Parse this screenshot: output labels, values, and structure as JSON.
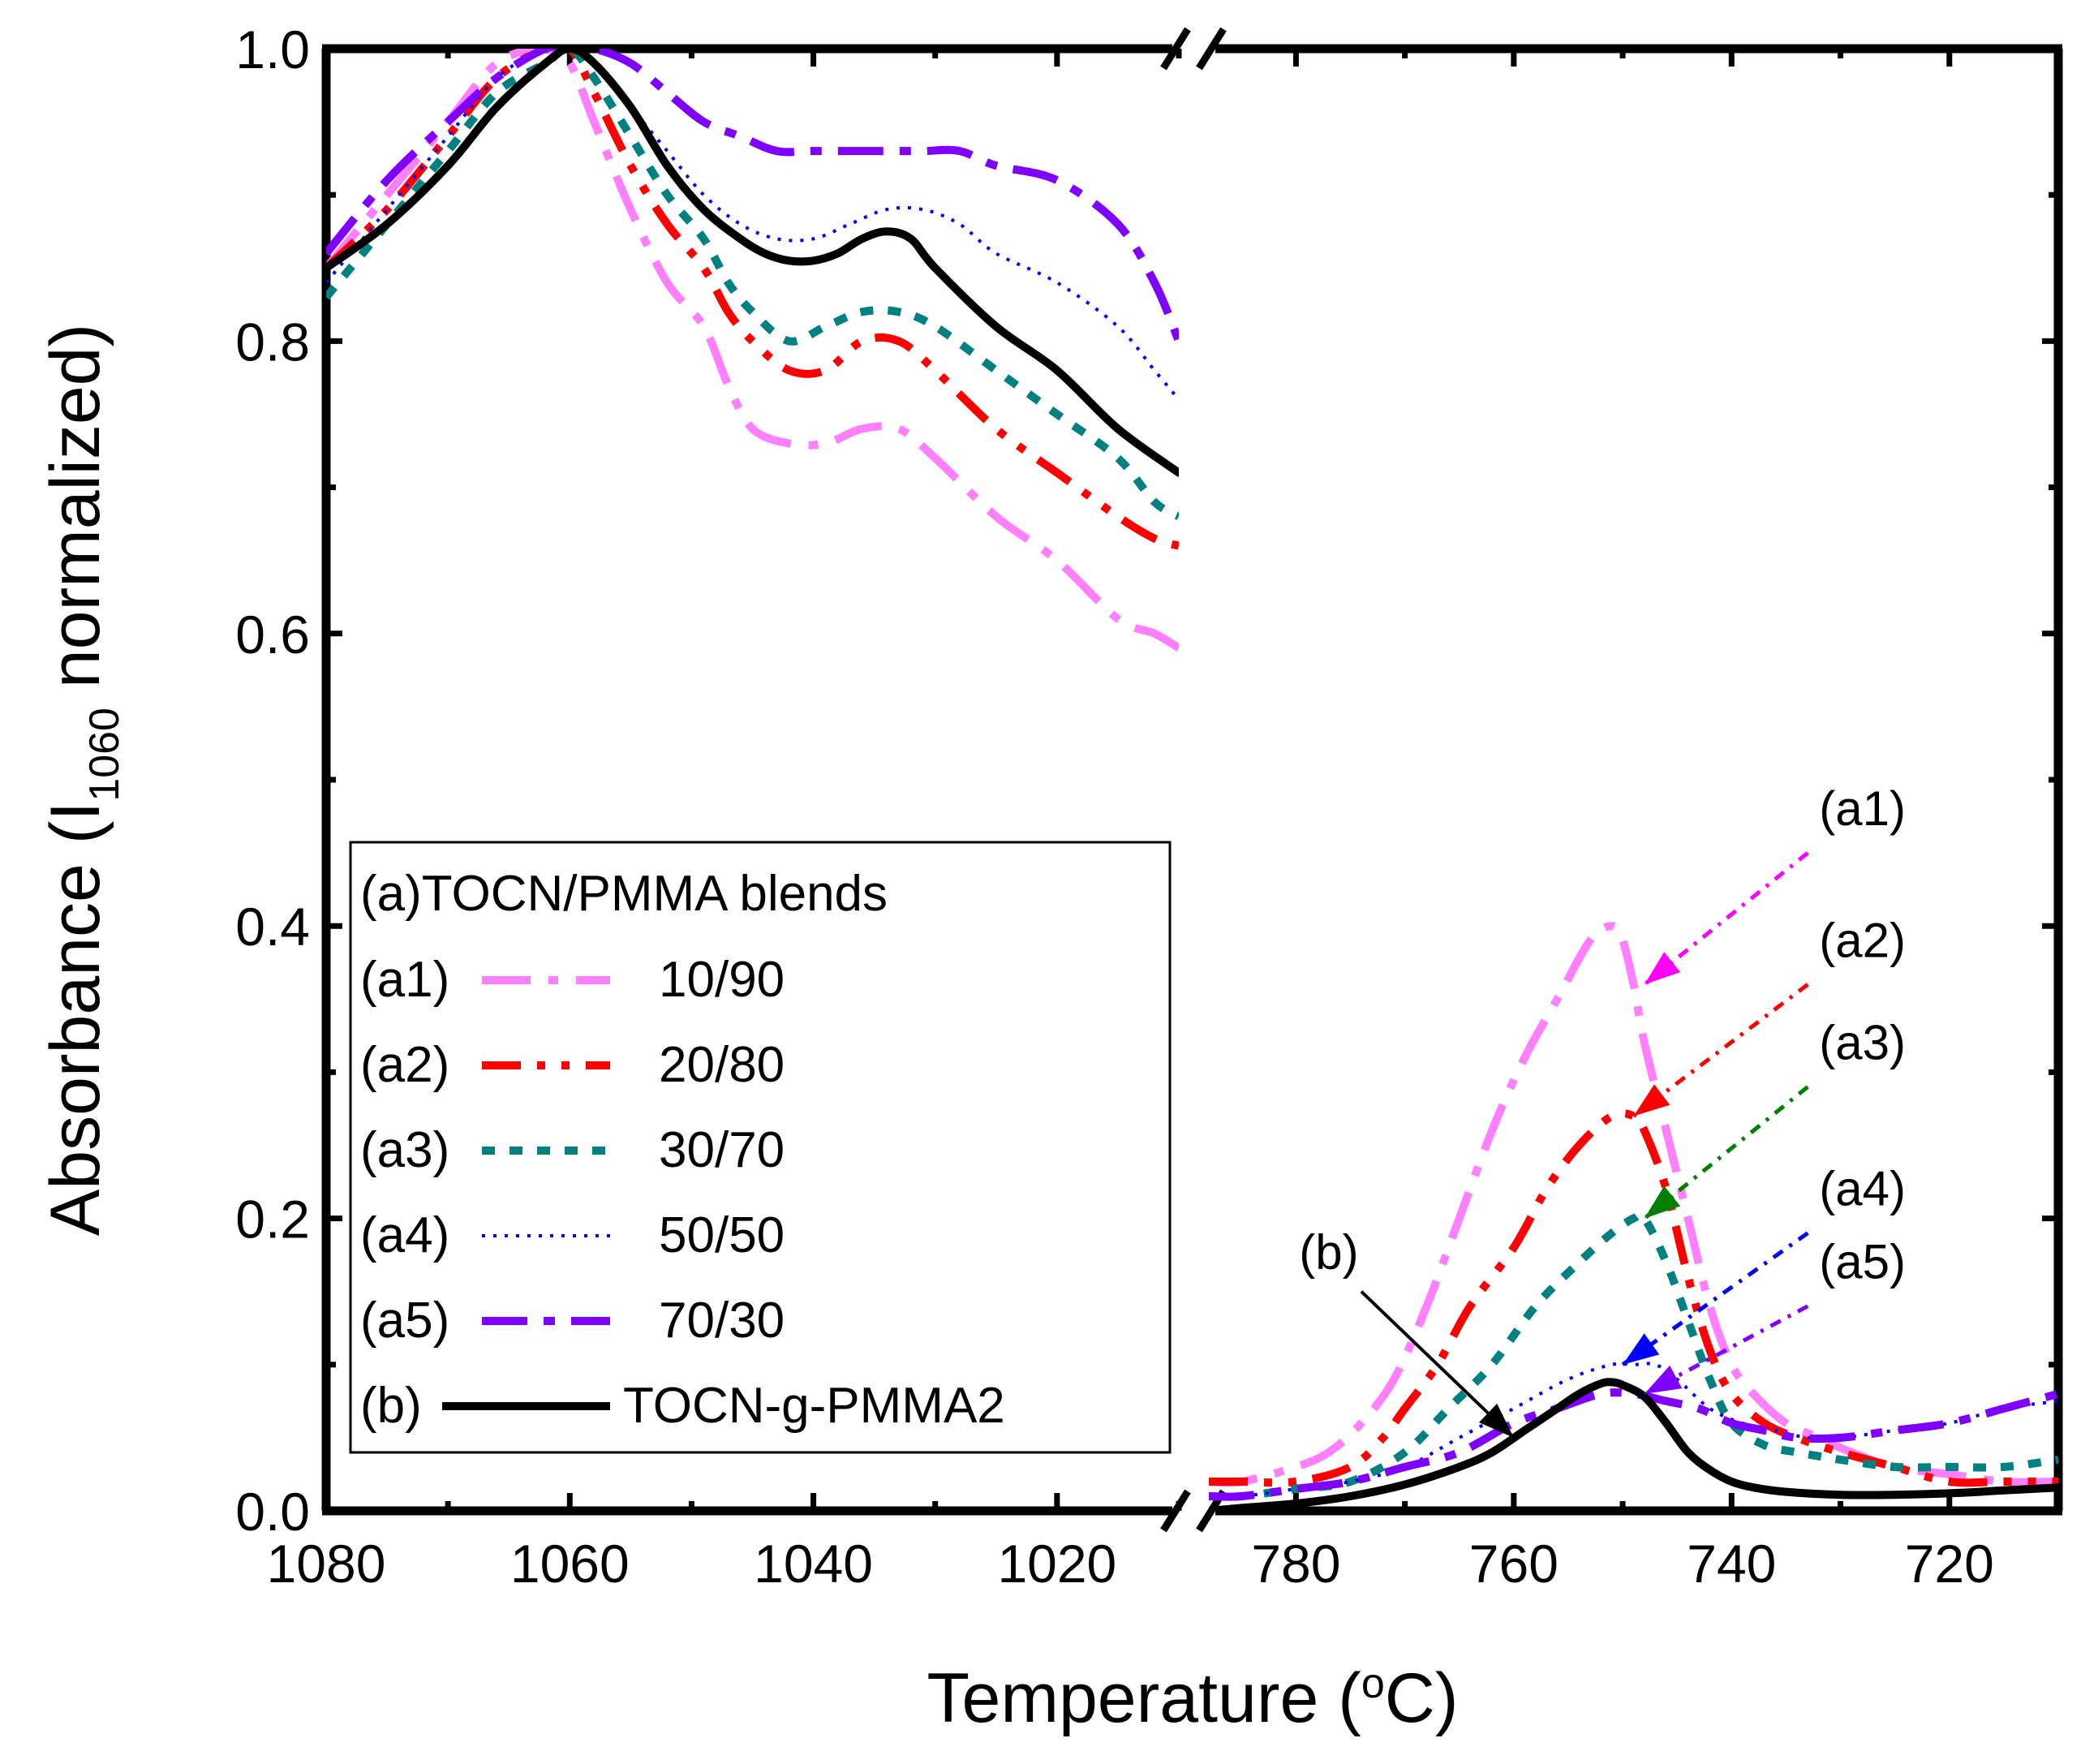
{
  "chart_data": {
    "type": "line",
    "title": "",
    "xlabel": "Temperature (°C)",
    "xlabel_prefix": "Temperature (",
    "xlabel_sup": "o",
    "xlabel_suffix": "C)",
    "ylabel_prefix": "Absorbance (I",
    "ylabel_sub": "1060",
    "ylabel_suffix": " normalized)",
    "ylim": [
      0.0,
      1.0
    ],
    "yticks": [
      "0.0",
      "0.2",
      "0.4",
      "0.6",
      "0.8",
      "1.0"
    ],
    "segments": [
      {
        "id": "left",
        "xlim": [
          1080,
          1010
        ],
        "xticks": [
          "1080",
          "1060",
          "1040",
          "1020"
        ]
      },
      {
        "id": "right",
        "xlim": [
          788,
          710
        ],
        "xticks": [
          "780",
          "760",
          "740",
          "720"
        ]
      }
    ],
    "legend": {
      "title": "(a)TOCN/PMMA blends",
      "placement": "center-left",
      "entries": [
        {
          "tag": "(a1)",
          "label": "10/90"
        },
        {
          "tag": "(a2)",
          "label": "20/80"
        },
        {
          "tag": "(a3)",
          "label": "30/70"
        },
        {
          "tag": "(a4)",
          "label": "50/50"
        },
        {
          "tag": "(a5)",
          "label": "70/30"
        },
        {
          "tag": "(b)",
          "label": "TOCN-g-PMMA2"
        }
      ]
    },
    "series": [
      {
        "name": "(a1) 10/90",
        "color": "#ff80ff",
        "dash": "dashdot",
        "left": {
          "x": [
            1080,
            1075,
            1070,
            1066,
            1062,
            1060,
            1058,
            1055,
            1052,
            1049,
            1047,
            1045,
            1042,
            1039,
            1036,
            1033,
            1030,
            1025,
            1020,
            1015,
            1012,
            1010
          ],
          "y": [
            0.85,
            0.9,
            0.95,
            0.99,
            1.0,
            0.99,
            0.95,
            0.89,
            0.84,
            0.81,
            0.77,
            0.74,
            0.73,
            0.73,
            0.74,
            0.74,
            0.72,
            0.68,
            0.65,
            0.61,
            0.6,
            0.59
          ]
        },
        "right": {
          "x": [
            788,
            785,
            780,
            777,
            774,
            771,
            768,
            765,
            762,
            759,
            756,
            753,
            751,
            750,
            749,
            748,
            746,
            744,
            742,
            740,
            738,
            735,
            732,
            729,
            725,
            720,
            715,
            710
          ],
          "y": [
            0.02,
            0.02,
            0.03,
            0.04,
            0.06,
            0.09,
            0.14,
            0.2,
            0.26,
            0.31,
            0.35,
            0.39,
            0.4,
            0.39,
            0.36,
            0.32,
            0.26,
            0.2,
            0.14,
            0.1,
            0.08,
            0.06,
            0.05,
            0.04,
            0.03,
            0.025,
            0.02,
            0.02
          ]
        }
      },
      {
        "name": "(a2) 20/80",
        "color": "#ff0000",
        "dash": "dashdotdot",
        "left": {
          "x": [
            1080,
            1075,
            1070,
            1066,
            1062,
            1060,
            1058,
            1055,
            1052,
            1049,
            1047,
            1045,
            1042,
            1039,
            1036,
            1033,
            1030,
            1025,
            1020,
            1015,
            1012,
            1010
          ],
          "y": [
            0.85,
            0.89,
            0.94,
            0.98,
            1.0,
            1.0,
            0.97,
            0.92,
            0.88,
            0.85,
            0.82,
            0.8,
            0.78,
            0.78,
            0.8,
            0.8,
            0.78,
            0.74,
            0.71,
            0.68,
            0.665,
            0.66
          ]
        },
        "right": {
          "x": [
            788,
            785,
            780,
            775,
            772,
            770,
            767,
            764,
            760,
            757,
            754,
            751,
            749,
            748,
            746,
            744,
            742,
            740,
            737,
            734,
            730,
            725,
            720,
            715,
            710
          ],
          "y": [
            0.02,
            0.02,
            0.02,
            0.03,
            0.05,
            0.07,
            0.1,
            0.14,
            0.18,
            0.22,
            0.25,
            0.27,
            0.27,
            0.26,
            0.22,
            0.16,
            0.11,
            0.08,
            0.06,
            0.05,
            0.04,
            0.03,
            0.02,
            0.02,
            0.02
          ]
        }
      },
      {
        "name": "(a3) 30/70",
        "color": "#008080",
        "dash": "dot",
        "left": {
          "x": [
            1080,
            1075,
            1070,
            1066,
            1062,
            1060,
            1058,
            1055,
            1052,
            1049,
            1047,
            1045,
            1042,
            1039,
            1036,
            1033,
            1030,
            1025,
            1020,
            1015,
            1012,
            1010
          ],
          "y": [
            0.83,
            0.88,
            0.93,
            0.97,
            0.99,
            1.0,
            0.98,
            0.94,
            0.9,
            0.87,
            0.84,
            0.82,
            0.8,
            0.81,
            0.82,
            0.82,
            0.81,
            0.78,
            0.75,
            0.72,
            0.69,
            0.68
          ]
        },
        "right": {
          "x": [
            788,
            785,
            780,
            775,
            770,
            766,
            762,
            758,
            754,
            751,
            749,
            748,
            746,
            744,
            742,
            740,
            737,
            734,
            730,
            725,
            720,
            715,
            710
          ],
          "y": [
            0.01,
            0.01,
            0.015,
            0.02,
            0.04,
            0.07,
            0.1,
            0.14,
            0.17,
            0.19,
            0.2,
            0.2,
            0.17,
            0.13,
            0.09,
            0.06,
            0.045,
            0.04,
            0.035,
            0.03,
            0.03,
            0.03,
            0.035
          ]
        }
      },
      {
        "name": "(a4) 50/50",
        "color": "#0000ff",
        "dash": "dotfine",
        "left": {
          "x": [
            1080,
            1075,
            1070,
            1066,
            1062,
            1060,
            1058,
            1055,
            1052,
            1049,
            1046,
            1043,
            1040,
            1037,
            1034,
            1031,
            1028,
            1025,
            1020,
            1015,
            1012,
            1010
          ],
          "y": [
            0.84,
            0.89,
            0.94,
            0.98,
            1.0,
            1.0,
            0.99,
            0.96,
            0.93,
            0.9,
            0.88,
            0.87,
            0.87,
            0.88,
            0.89,
            0.89,
            0.88,
            0.86,
            0.84,
            0.81,
            0.78,
            0.76
          ]
        },
        "right": {
          "x": [
            788,
            785,
            780,
            775,
            770,
            765,
            760,
            755,
            751,
            749,
            747,
            745,
            742,
            739,
            736,
            733,
            730,
            725,
            720,
            715,
            710
          ],
          "y": [
            0.01,
            0.01,
            0.015,
            0.02,
            0.03,
            0.05,
            0.07,
            0.09,
            0.1,
            0.1,
            0.1,
            0.09,
            0.07,
            0.06,
            0.055,
            0.05,
            0.05,
            0.055,
            0.06,
            0.07,
            0.075
          ]
        }
      },
      {
        "name": "(a5) 70/30",
        "color": "#8000ff",
        "dash": "dashdot-long",
        "left": {
          "x": [
            1080,
            1075,
            1070,
            1066,
            1062,
            1060,
            1058,
            1055,
            1052,
            1049,
            1046,
            1043,
            1040,
            1037,
            1034,
            1031,
            1028,
            1025,
            1020,
            1015,
            1012,
            1010
          ],
          "y": [
            0.86,
            0.91,
            0.95,
            0.98,
            1.0,
            1.0,
            1.0,
            0.99,
            0.97,
            0.95,
            0.94,
            0.93,
            0.93,
            0.93,
            0.93,
            0.93,
            0.93,
            0.92,
            0.91,
            0.88,
            0.84,
            0.8
          ]
        },
        "right": {
          "x": [
            788,
            785,
            780,
            775,
            770,
            765,
            760,
            756,
            752,
            749,
            746,
            743,
            740,
            737,
            734,
            730,
            725,
            720,
            715,
            710
          ],
          "y": [
            0.01,
            0.01,
            0.015,
            0.02,
            0.03,
            0.04,
            0.06,
            0.07,
            0.08,
            0.08,
            0.075,
            0.07,
            0.06,
            0.055,
            0.05,
            0.05,
            0.055,
            0.06,
            0.07,
            0.08
          ]
        }
      },
      {
        "name": "(b) TOCN-g-PMMA2",
        "color": "#000000",
        "dash": "solid",
        "left": {
          "x": [
            1080,
            1075,
            1070,
            1066,
            1062,
            1060,
            1058,
            1055,
            1052,
            1049,
            1046,
            1044,
            1042,
            1040,
            1038,
            1036,
            1034,
            1032,
            1030,
            1025,
            1020,
            1015,
            1010
          ],
          "y": [
            0.85,
            0.88,
            0.92,
            0.96,
            0.99,
            1.0,
            0.99,
            0.96,
            0.92,
            0.89,
            0.87,
            0.86,
            0.855,
            0.855,
            0.86,
            0.87,
            0.875,
            0.87,
            0.85,
            0.81,
            0.78,
            0.74,
            0.71
          ]
        },
        "right": {
          "x": [
            788,
            785,
            780,
            775,
            770,
            765,
            762,
            759,
            756,
            754,
            752,
            751,
            750,
            748,
            746,
            744,
            742,
            740,
            738,
            735,
            730,
            725,
            720,
            715,
            710
          ],
          "y": [
            0.0,
            0.002,
            0.005,
            0.01,
            0.018,
            0.03,
            0.04,
            0.055,
            0.07,
            0.08,
            0.087,
            0.088,
            0.086,
            0.078,
            0.06,
            0.04,
            0.028,
            0.02,
            0.016,
            0.013,
            0.011,
            0.011,
            0.012,
            0.014,
            0.016
          ]
        }
      }
    ],
    "annotations": [
      {
        "label": "(a1)",
        "color": "#ff00ff",
        "from": {
          "x": 733,
          "y": 0.45
        },
        "to": {
          "x": 748,
          "y": 0.36
        }
      },
      {
        "label": "(a2)",
        "color": "#ff0000",
        "from": {
          "x": 733,
          "y": 0.36
        },
        "to": {
          "x": 749,
          "y": 0.27
        }
      },
      {
        "label": "(a3)",
        "color": "#008000",
        "from": {
          "x": 733,
          "y": 0.29
        },
        "to": {
          "x": 748,
          "y": 0.2
        }
      },
      {
        "label": "(a4)",
        "color": "#0000ff",
        "from": {
          "x": 733,
          "y": 0.19
        },
        "to": {
          "x": 750,
          "y": 0.1
        }
      },
      {
        "label": "(a5)",
        "color": "#8000ff",
        "from": {
          "x": 733,
          "y": 0.14
        },
        "to": {
          "x": 748,
          "y": 0.08
        }
      },
      {
        "label": "(b)",
        "color": "#000000",
        "from": {
          "x": 774,
          "y": 0.15
        },
        "to": {
          "x": 760,
          "y": 0.05
        }
      }
    ]
  }
}
